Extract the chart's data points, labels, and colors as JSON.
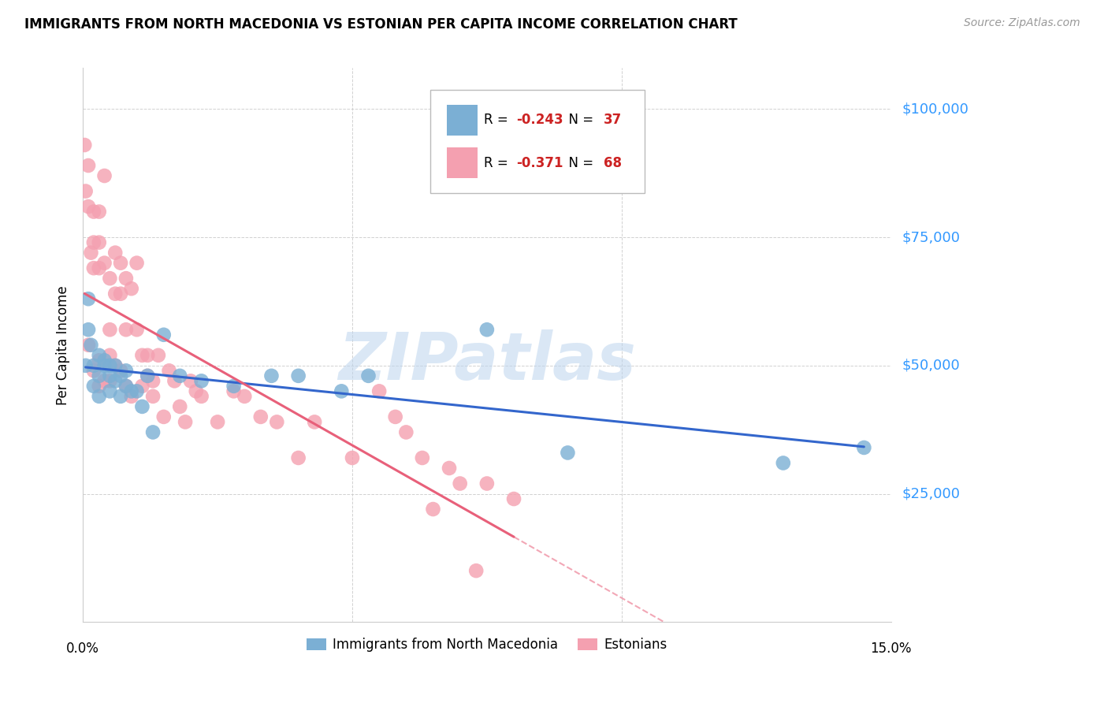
{
  "title": "IMMIGRANTS FROM NORTH MACEDONIA VS ESTONIAN PER CAPITA INCOME CORRELATION CHART",
  "source": "Source: ZipAtlas.com",
  "ylabel": "Per Capita Income",
  "xlim": [
    0.0,
    0.15
  ],
  "ylim": [
    0,
    108000
  ],
  "blue_R": -0.243,
  "blue_N": 37,
  "pink_R": -0.371,
  "pink_N": 68,
  "blue_color": "#7BAFD4",
  "pink_color": "#F4A0B0",
  "blue_line_color": "#3366CC",
  "pink_line_color": "#E8607A",
  "watermark_color": "#DDEEFF",
  "blue_scatter_x": [
    0.0005,
    0.001,
    0.001,
    0.0015,
    0.002,
    0.002,
    0.003,
    0.003,
    0.003,
    0.004,
    0.004,
    0.005,
    0.005,
    0.005,
    0.006,
    0.006,
    0.007,
    0.007,
    0.008,
    0.008,
    0.009,
    0.01,
    0.011,
    0.012,
    0.013,
    0.015,
    0.018,
    0.022,
    0.028,
    0.035,
    0.04,
    0.048,
    0.053,
    0.075,
    0.09,
    0.13,
    0.145
  ],
  "blue_scatter_y": [
    50000,
    63000,
    57000,
    54000,
    50000,
    46000,
    52000,
    48000,
    44000,
    50000,
    51000,
    48000,
    50000,
    45000,
    50000,
    47000,
    48000,
    44000,
    46000,
    49000,
    45000,
    45000,
    42000,
    48000,
    37000,
    56000,
    48000,
    47000,
    46000,
    48000,
    48000,
    45000,
    48000,
    57000,
    33000,
    31000,
    34000
  ],
  "pink_scatter_x": [
    0.0003,
    0.0005,
    0.001,
    0.001,
    0.001,
    0.0015,
    0.002,
    0.002,
    0.002,
    0.002,
    0.003,
    0.003,
    0.003,
    0.003,
    0.003,
    0.004,
    0.004,
    0.004,
    0.005,
    0.005,
    0.005,
    0.005,
    0.006,
    0.006,
    0.006,
    0.007,
    0.007,
    0.007,
    0.008,
    0.008,
    0.008,
    0.009,
    0.009,
    0.01,
    0.01,
    0.011,
    0.011,
    0.012,
    0.012,
    0.013,
    0.013,
    0.014,
    0.015,
    0.016,
    0.017,
    0.018,
    0.019,
    0.02,
    0.021,
    0.022,
    0.025,
    0.028,
    0.03,
    0.033,
    0.036,
    0.04,
    0.043,
    0.05,
    0.055,
    0.058,
    0.06,
    0.063,
    0.065,
    0.068,
    0.07,
    0.073,
    0.075,
    0.08
  ],
  "pink_scatter_y": [
    93000,
    84000,
    54000,
    89000,
    81000,
    72000,
    80000,
    74000,
    69000,
    49000,
    80000,
    74000,
    69000,
    51000,
    46000,
    87000,
    70000,
    47000,
    67000,
    57000,
    52000,
    47000,
    72000,
    64000,
    50000,
    70000,
    64000,
    49000,
    67000,
    57000,
    46000,
    65000,
    44000,
    70000,
    57000,
    52000,
    46000,
    52000,
    48000,
    47000,
    44000,
    52000,
    40000,
    49000,
    47000,
    42000,
    39000,
    47000,
    45000,
    44000,
    39000,
    45000,
    44000,
    40000,
    39000,
    32000,
    39000,
    32000,
    45000,
    40000,
    37000,
    32000,
    22000,
    30000,
    27000,
    10000,
    27000,
    24000
  ],
  "yticks": [
    0,
    25000,
    50000,
    75000,
    100000
  ],
  "ytick_labels": [
    "",
    "$25,000",
    "$50,000",
    "$75,000",
    "$100,000"
  ],
  "xtick_positions": [
    0.0,
    0.05,
    0.1,
    0.15
  ],
  "xtick_labels_shown": [
    "0.0%",
    "15.0%"
  ],
  "xtick_labels_shown_pos": [
    0.0,
    0.15
  ]
}
